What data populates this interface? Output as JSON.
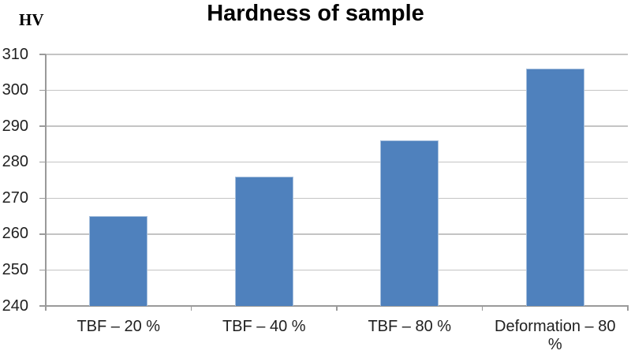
{
  "chart_data": {
    "type": "bar",
    "title": "Hardness of sample",
    "ylabel": "HV",
    "xlabel": "",
    "categories": [
      "TBF – 20 %",
      "TBF – 40 %",
      "TBF – 80 %",
      "Deformation – 80 %"
    ],
    "values": [
      265,
      276,
      286,
      306
    ],
    "ylim": [
      240,
      310
    ],
    "yticks": [
      240,
      250,
      260,
      270,
      280,
      290,
      300,
      310
    ],
    "grid": "horizontal",
    "legend": "none",
    "bar_color": "#4f81bd",
    "bar_border_color": "#a7c0dd",
    "gridline_color": "#c4c4c4",
    "axis_color": "#9a9a9a",
    "text_color": "#1f1f1f"
  }
}
